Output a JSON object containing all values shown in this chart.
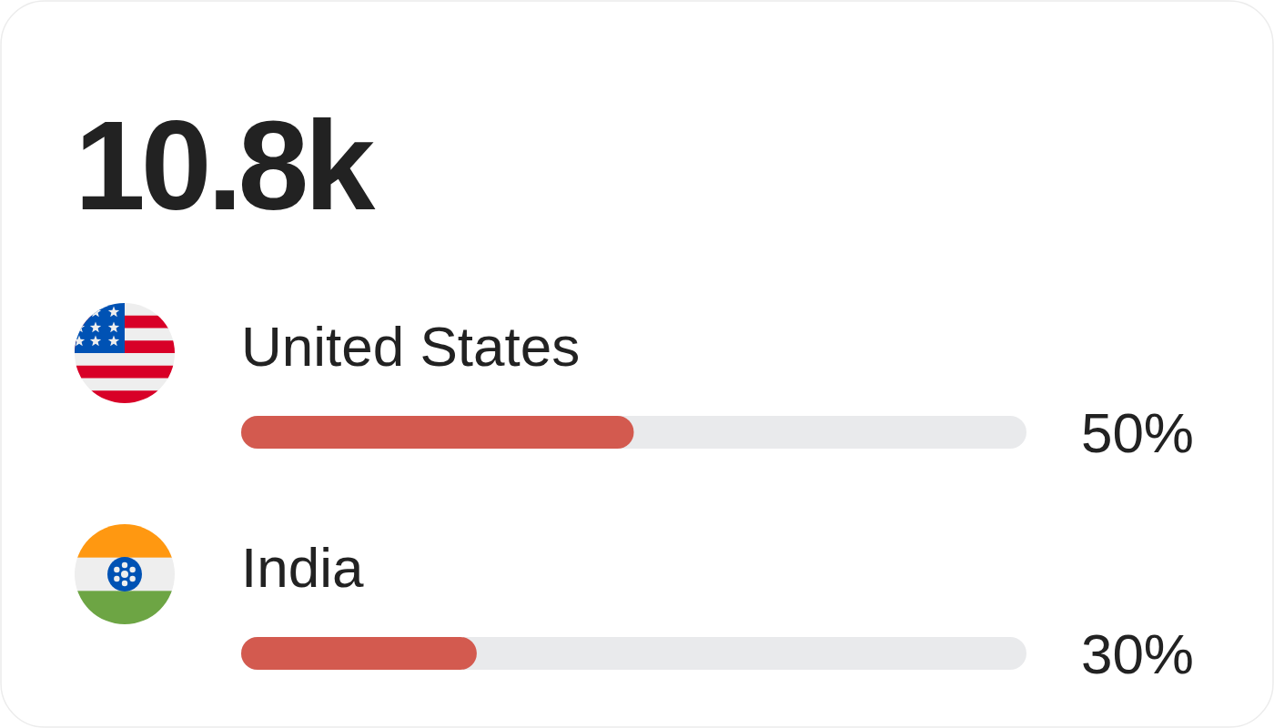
{
  "chart_data": {
    "type": "bar",
    "orientation": "horizontal",
    "title": "10.8k",
    "categories": [
      "United States",
      "India"
    ],
    "values": [
      50,
      30
    ],
    "value_labels": [
      "50%",
      "30%"
    ],
    "xlim": [
      0,
      100
    ],
    "color": "#d35a4f",
    "tick_labels": "y"
  }
}
